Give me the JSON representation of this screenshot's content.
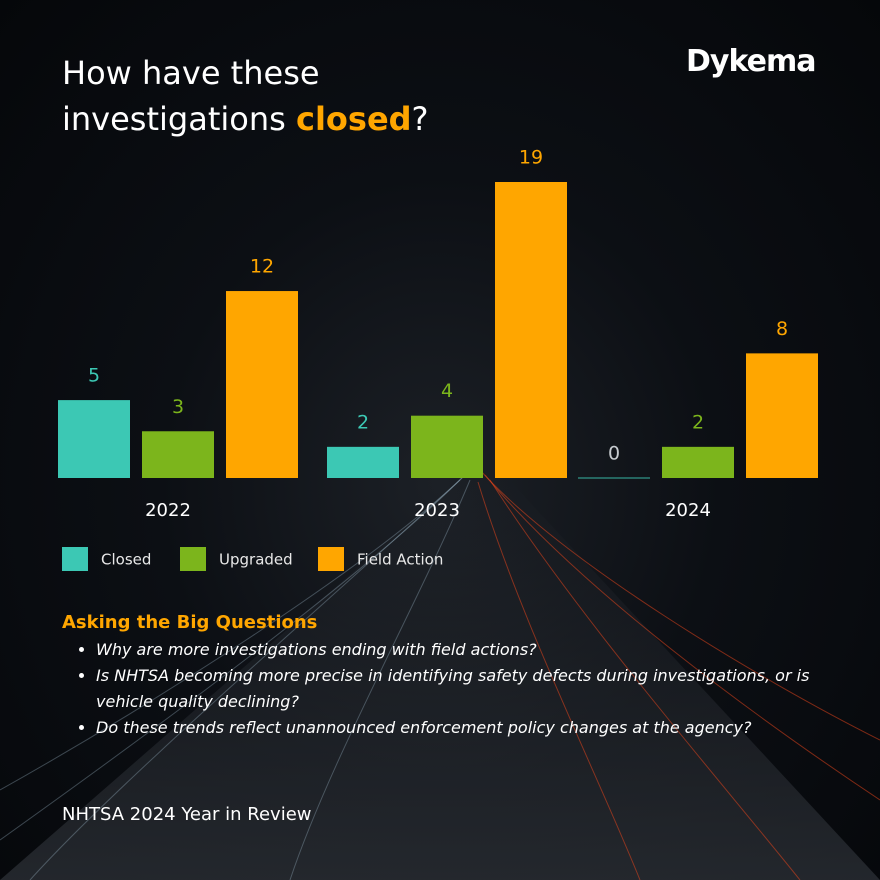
{
  "brand": "Dykema",
  "chart_data": {
    "type": "bar",
    "title_parts": [
      "How have these investigations",
      "closed",
      "?"
    ],
    "categories": [
      "2022",
      "2023",
      "2024"
    ],
    "series": [
      {
        "name": "Closed",
        "color": "#3cc8b4",
        "values": [
          5,
          2,
          0
        ]
      },
      {
        "name": "Upgraded",
        "color": "#7cb51c",
        "values": [
          3,
          4,
          2
        ]
      },
      {
        "name": "Field Action",
        "color": "#ffa600",
        "values": [
          12,
          19,
          8
        ]
      }
    ]
  },
  "questions": {
    "heading": "Asking the Big Questions",
    "items": [
      "Why are more investigations ending with field actions?",
      "Is NHTSA becoming more precise in identifying safety defects during investigations, or is vehicle quality declining?",
      "Do these trends reflect unannounced enforcement policy changes at the agency?"
    ]
  },
  "footer": "NHTSA 2024 Year in Review"
}
